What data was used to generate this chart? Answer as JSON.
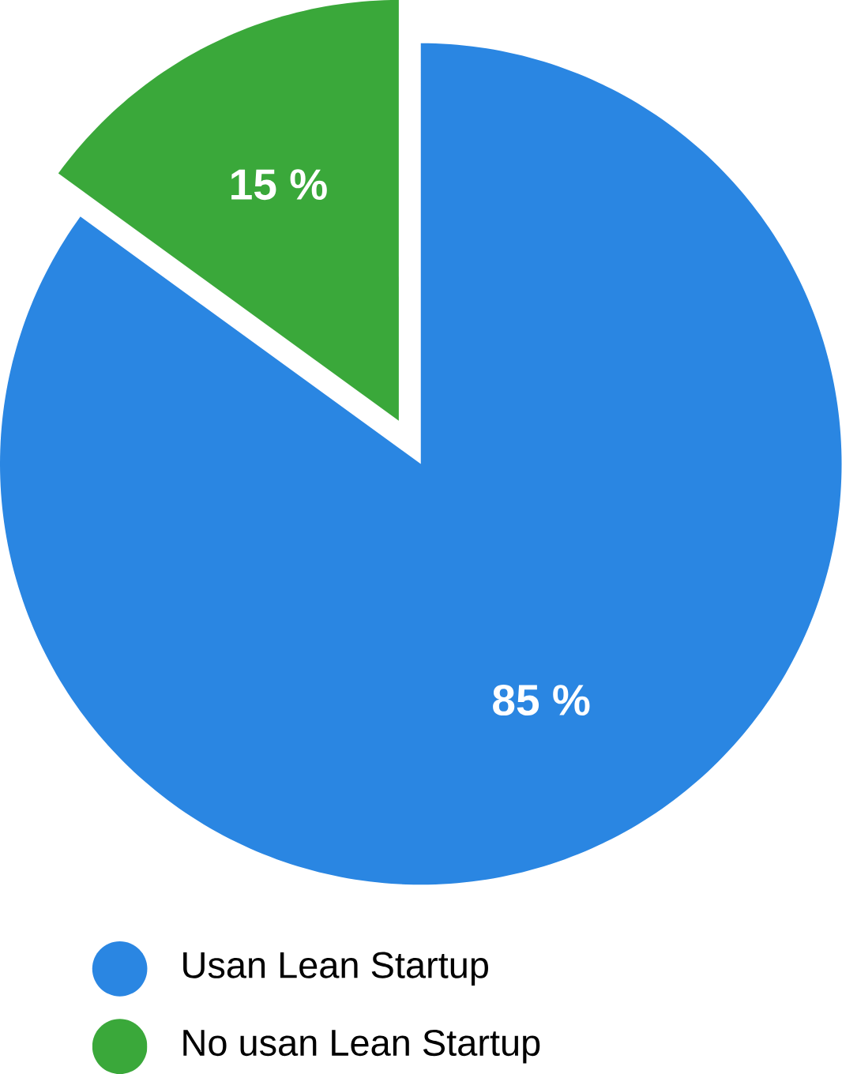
{
  "chart_data": {
    "type": "pie",
    "categories": [
      "Usan Lean Startup",
      "No usan Lean Startup"
    ],
    "values": [
      85,
      15
    ],
    "colors": [
      "#2a86e2",
      "#3aa83a"
    ],
    "value_labels": [
      "85 %",
      "15 %"
    ],
    "legend": "bottom"
  }
}
